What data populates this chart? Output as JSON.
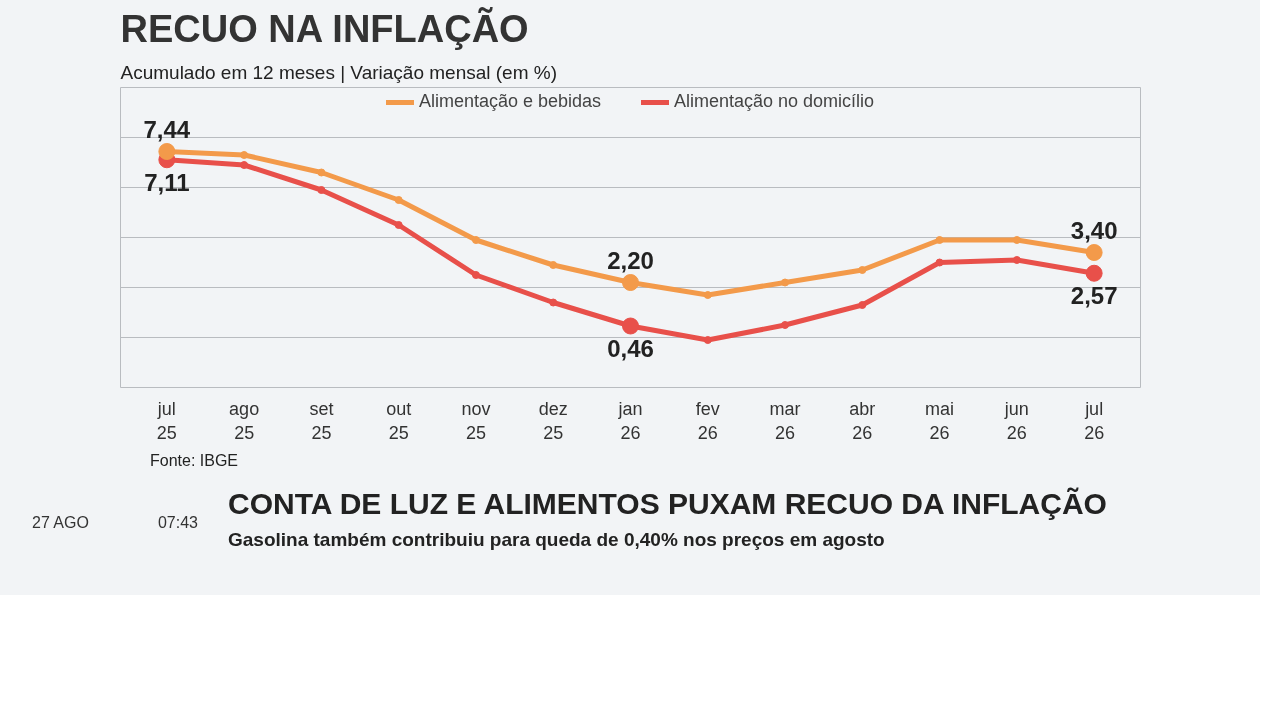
{
  "chart_data": {
    "type": "line",
    "title": "RECUO NA INFLAÇÃO",
    "subtitle": "Acumulado em 12 meses | Variação mensal (em %)",
    "categories": [
      "jul 25",
      "ago 25",
      "set 25",
      "out 25",
      "nov 25",
      "dez 25",
      "jan 26",
      "fev 26",
      "mar 26",
      "abr 26",
      "mai 26",
      "jun 26",
      "jul 26"
    ],
    "series": [
      {
        "name": "Alimentação e bebidas",
        "color": "#f39a4a",
        "values": [
          7.44,
          7.3,
          6.6,
          5.5,
          3.9,
          2.9,
          2.2,
          1.7,
          2.2,
          2.7,
          3.9,
          3.9,
          3.4
        ],
        "value_labels": [
          "7,44",
          null,
          null,
          null,
          null,
          null,
          "2,20",
          null,
          null,
          null,
          null,
          null,
          "3,40"
        ]
      },
      {
        "name": "Alimentação no domicílio",
        "color": "#e8504a",
        "values": [
          7.11,
          6.9,
          5.9,
          4.5,
          2.5,
          1.4,
          0.46,
          -0.1,
          0.5,
          1.3,
          3.0,
          3.1,
          2.57
        ],
        "value_labels": [
          "7,11",
          null,
          null,
          null,
          null,
          null,
          "0,46",
          null,
          null,
          null,
          null,
          null,
          "2,57"
        ]
      }
    ],
    "ylim": [
      -2,
      10
    ],
    "yticks": [
      {
        "value": -2,
        "label": null
      },
      {
        "value": 0,
        "label": null
      },
      {
        "value": 2,
        "label": null
      },
      {
        "value": 4,
        "label": null
      },
      {
        "value": 6,
        "label": null
      },
      {
        "value": 8,
        "label": null
      },
      {
        "value": 10,
        "label": null
      }
    ],
    "tick_labels": "x",
    "grid": "y",
    "legend": "top",
    "marker": "circle",
    "line_style": "solid",
    "annotations": [
      "Fonte: IBGE",
      "CONTA DE LUZ E ALIMENTOS PUXAM RECUO DA INFLAÇÃO",
      "Gasolina também contribuiu para queda de 0,40% nos preços em agosto",
      "27 AGO",
      "07:43"
    ]
  }
}
